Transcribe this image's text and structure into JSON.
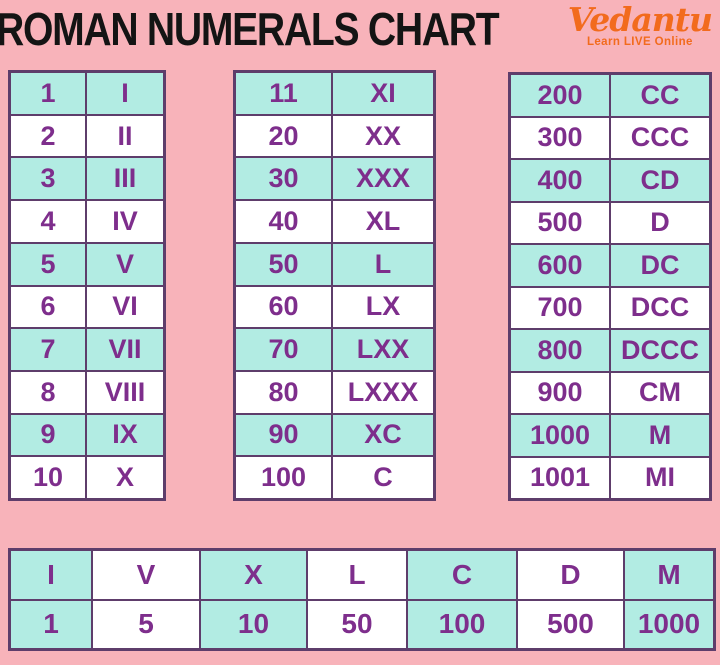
{
  "header": {
    "title": "ROMAN NUMERALS CHART"
  },
  "logo": {
    "brand": "Vedantu",
    "tagline": "Learn LIVE Online"
  },
  "colors": {
    "background_pink": "#f8b3ba",
    "cell_cyan": "#b2ece3",
    "cell_white": "#ffffff",
    "border_purple": "#5e3d6b",
    "numeral_purple": "#7e2e8c",
    "title_black": "#141414",
    "brand_orange": "#f26b1d"
  },
  "chart_data": {
    "type": "table",
    "title": "ROMAN NUMERALS CHART",
    "tables": [
      {
        "name": "ones",
        "rows": [
          [
            "1",
            "I"
          ],
          [
            "2",
            "II"
          ],
          [
            "3",
            "III"
          ],
          [
            "4",
            "IV"
          ],
          [
            "5",
            "V"
          ],
          [
            "6",
            "VI"
          ],
          [
            "7",
            "VII"
          ],
          [
            "8",
            "VIII"
          ],
          [
            "9",
            "IX"
          ],
          [
            "10",
            "X"
          ]
        ]
      },
      {
        "name": "tens",
        "rows": [
          [
            "11",
            "XI"
          ],
          [
            "20",
            "XX"
          ],
          [
            "30",
            "XXX"
          ],
          [
            "40",
            "XL"
          ],
          [
            "50",
            "L"
          ],
          [
            "60",
            "LX"
          ],
          [
            "70",
            "LXX"
          ],
          [
            "80",
            "LXXX"
          ],
          [
            "90",
            "XC"
          ],
          [
            "100",
            "C"
          ]
        ]
      },
      {
        "name": "hundreds",
        "rows": [
          [
            "200",
            "CC"
          ],
          [
            "300",
            "CCC"
          ],
          [
            "400",
            "CD"
          ],
          [
            "500",
            "D"
          ],
          [
            "600",
            "DC"
          ],
          [
            "700",
            "DCC"
          ],
          [
            "800",
            "DCCC"
          ],
          [
            "900",
            "CM"
          ],
          [
            "1000",
            "M"
          ],
          [
            "1001",
            "MI"
          ]
        ]
      }
    ],
    "symbol_table": {
      "symbols": [
        "I",
        "V",
        "X",
        "L",
        "C",
        "D",
        "M"
      ],
      "values": [
        "1",
        "5",
        "10",
        "50",
        "100",
        "500",
        "1000"
      ]
    }
  }
}
